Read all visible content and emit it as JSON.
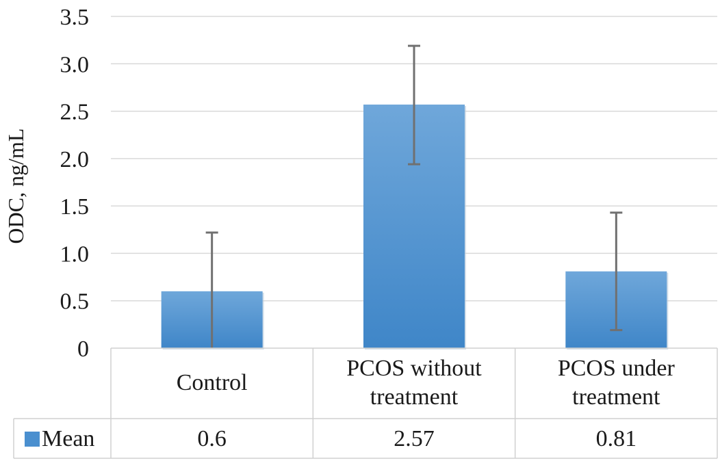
{
  "chart_data": {
    "type": "bar",
    "ylabel": "ODC, ng/mL",
    "xlabel": "",
    "ylim": [
      0,
      3.5
    ],
    "yticks": [
      0,
      0.5,
      1.0,
      1.5,
      2.0,
      2.5,
      3.0,
      3.5
    ],
    "ytick_labels": [
      "0",
      "0.5",
      "1.0",
      "1.5",
      "2.0",
      "2.5",
      "3.0",
      "3.5"
    ],
    "grid": true,
    "categories": [
      [
        "Control"
      ],
      [
        "PCOS without",
        "treatment"
      ],
      [
        "PCOS under",
        "treatment"
      ]
    ],
    "series": [
      {
        "name": "Mean",
        "color": "#4a8fcf",
        "values": [
          0.6,
          2.57,
          0.81
        ],
        "value_labels": [
          "0.6",
          "2.57",
          "0.81"
        ],
        "error_upper": [
          1.22,
          3.19,
          1.43
        ],
        "error_lower": [
          0.0,
          1.94,
          0.19
        ]
      }
    ],
    "data_table": true,
    "error_bar_color": "#707070"
  }
}
